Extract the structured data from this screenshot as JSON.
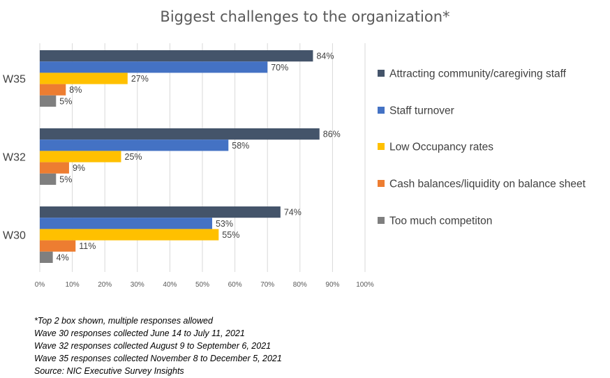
{
  "chart_data": {
    "type": "bar",
    "orientation": "horizontal",
    "title": "Biggest challenges to the organization*",
    "categories": [
      "W35",
      "W32",
      "W30"
    ],
    "series": [
      {
        "name": "Attracting community/caregiving staff",
        "color": "#44546A",
        "values": [
          84,
          86,
          74
        ],
        "labels": [
          "84%",
          "86%",
          "74%"
        ]
      },
      {
        "name": "Staff turnover",
        "color": "#4472C4",
        "values": [
          70,
          58,
          53
        ],
        "labels": [
          "70%",
          "58%",
          "53%"
        ]
      },
      {
        "name": "Low Occupancy rates",
        "color": "#FFC000",
        "values": [
          27,
          25,
          55
        ],
        "labels": [
          "27%",
          "25%",
          "55%"
        ]
      },
      {
        "name": "Cash balances/liquidity on balance sheet",
        "color": "#ED7D31",
        "values": [
          8,
          9,
          11
        ],
        "labels": [
          "8%",
          "9%",
          "11%"
        ]
      },
      {
        "name": "Too much competiton",
        "color": "#7F7F7F",
        "values": [
          5,
          5,
          4
        ],
        "labels": [
          "5%",
          "5%",
          "4%"
        ]
      }
    ],
    "xlim": [
      0,
      100
    ],
    "xticks": [
      0,
      10,
      20,
      30,
      40,
      50,
      60,
      70,
      80,
      90,
      100
    ],
    "xtick_labels": [
      "0%",
      "10%",
      "20%",
      "30%",
      "40%",
      "50%",
      "60%",
      "70%",
      "80%",
      "90%",
      "100%"
    ],
    "grid": true,
    "legend_position": "right"
  },
  "footnotes": [
    "*Top 2 box shown, multiple responses allowed",
    "Wave 30  responses collected June 14 to July 11, 2021",
    "Wave 32  responses collected August 9 to September 6, 2021",
    "Wave 35  responses collected November 8 to December 5, 2021",
    "Source: NIC Executive Survey Insights"
  ]
}
